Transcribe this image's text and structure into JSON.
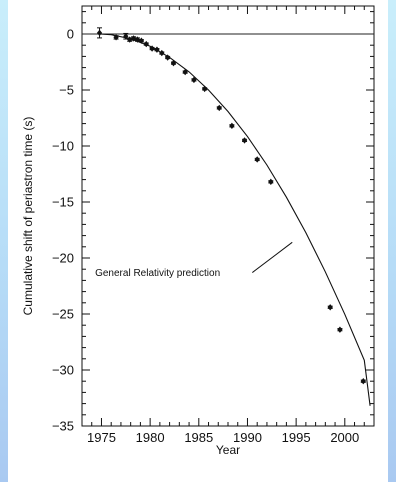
{
  "chart_data": {
    "type": "scatter",
    "title": "",
    "xlabel": "Year",
    "ylabel": "Cumulative shift of periastron time (s)",
    "xlim": [
      1973,
      2003
    ],
    "ylim": [
      -35,
      2.5
    ],
    "x_ticks": [
      "1975",
      "1980",
      "1985",
      "1990",
      "1995",
      "2000"
    ],
    "y_ticks": [
      "0",
      "−5",
      "−10",
      "−15",
      "−20",
      "−25",
      "−30",
      "−35"
    ],
    "reference_line_y": 0,
    "annotation": "General Relativity prediction",
    "grid": false,
    "series": [
      {
        "kind": "points",
        "x": [
          1974.8,
          1976.5,
          1977.5,
          1977.9,
          1978.3,
          1978.7,
          1979.1,
          1979.6,
          1980.2,
          1980.7,
          1981.2,
          1981.8,
          1982.4,
          1983.6,
          1984.5,
          1985.6,
          1987.1,
          1988.4,
          1989.7,
          1991.0,
          1992.4,
          1998.5,
          1999.5,
          2001.9
        ],
        "y": [
          0.1,
          -0.3,
          -0.2,
          -0.5,
          -0.4,
          -0.5,
          -0.6,
          -0.9,
          -1.3,
          -1.4,
          -1.7,
          -2.1,
          -2.6,
          -3.4,
          -4.1,
          -4.9,
          -6.6,
          -8.2,
          -9.5,
          -11.2,
          -13.2,
          -24.4,
          -26.4,
          -31.0
        ],
        "yerr": [
          0.45,
          0.15,
          0.25,
          0.15,
          0.15,
          0.15,
          0.1,
          0.1,
          0.1,
          0.1,
          0.1,
          0.1,
          0.1,
          0.1,
          0.1,
          0.1,
          0.1,
          0.1,
          0.1,
          0.1,
          0.1,
          0.1,
          0.1,
          0.1
        ]
      },
      {
        "kind": "curve",
        "x": [
          1974.8,
          1976,
          1978,
          1980,
          1982,
          1984,
          1986,
          1988,
          1990,
          1992,
          1994,
          1996,
          1998,
          2000,
          2002,
          2002.6
        ],
        "y": [
          0,
          -0.06,
          -0.42,
          -1.1,
          -2.09,
          -3.38,
          -5.0,
          -6.92,
          -9.16,
          -11.7,
          -14.57,
          -17.74,
          -21.23,
          -25.03,
          -29.13,
          -33.2
        ]
      }
    ]
  }
}
